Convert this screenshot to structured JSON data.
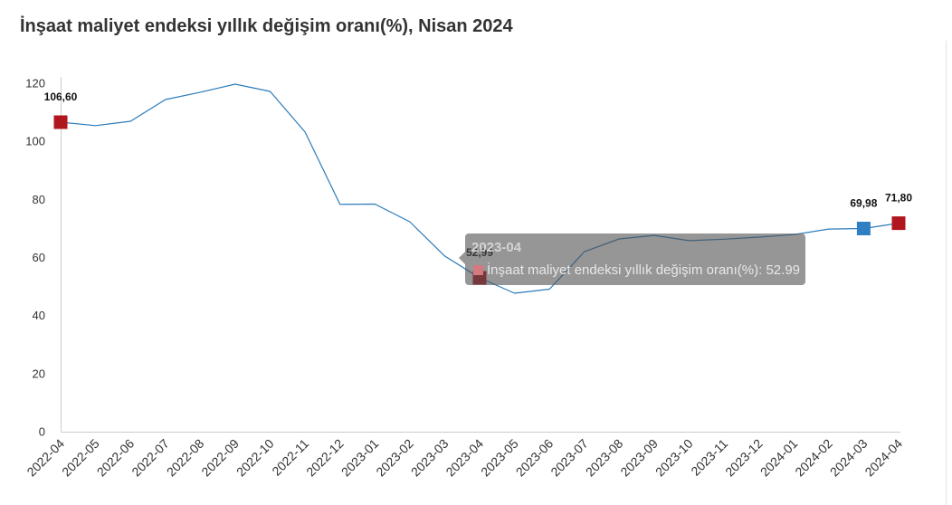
{
  "colors": {
    "line": "#2b7bba",
    "axis": "#cccccc",
    "highlight_red": "#b0161e",
    "highlight_blue": "#2f80c2",
    "tooltip_marker": "#d6797f"
  },
  "chart_data": {
    "type": "line",
    "title": "İnşaat maliyet endeksi yıllık değişim oranı(%), Nisan 2024",
    "xlabel": "",
    "ylabel": "",
    "ylim": [
      0,
      120
    ],
    "yticks": [
      0,
      20,
      40,
      60,
      80,
      100,
      120
    ],
    "grid": false,
    "legend": "none",
    "categories": [
      "2022-04",
      "2022-05",
      "2022-06",
      "2022-07",
      "2022-08",
      "2022-09",
      "2022-10",
      "2022-11",
      "2022-12",
      "2023-01",
      "2023-02",
      "2023-03",
      "2023-04",
      "2023-05",
      "2023-06",
      "2023-07",
      "2023-08",
      "2023-09",
      "2023-10",
      "2023-11",
      "2023-12",
      "2024-01",
      "2024-02",
      "2024-03",
      "2024-04"
    ],
    "series": [
      {
        "name": "İnşaat maliyet endeksi yıllık değişim oranı(%)",
        "values": [
          106.6,
          105.4,
          106.9,
          114.4,
          116.9,
          119.7,
          117.2,
          103.2,
          78.3,
          78.4,
          72.3,
          60.5,
          52.99,
          47.7,
          49.1,
          62.0,
          66.4,
          67.6,
          65.8,
          66.3,
          67.0,
          67.9,
          69.8,
          69.98,
          71.8
        ]
      }
    ],
    "highlighted_points": [
      {
        "category": "2022-04",
        "value": 106.6,
        "label": "106,60",
        "color": "#b0161e"
      },
      {
        "category": "2023-04",
        "value": 52.99,
        "label": "52,99",
        "color": "#b0161e"
      },
      {
        "category": "2024-03",
        "value": 69.98,
        "label": "69,98",
        "color": "#2f80c2"
      },
      {
        "category": "2024-04",
        "value": 71.8,
        "label": "71,80",
        "color": "#b0161e"
      }
    ]
  },
  "tooltip": {
    "category": "2023-04",
    "separator": ": ",
    "value": "52.99"
  }
}
